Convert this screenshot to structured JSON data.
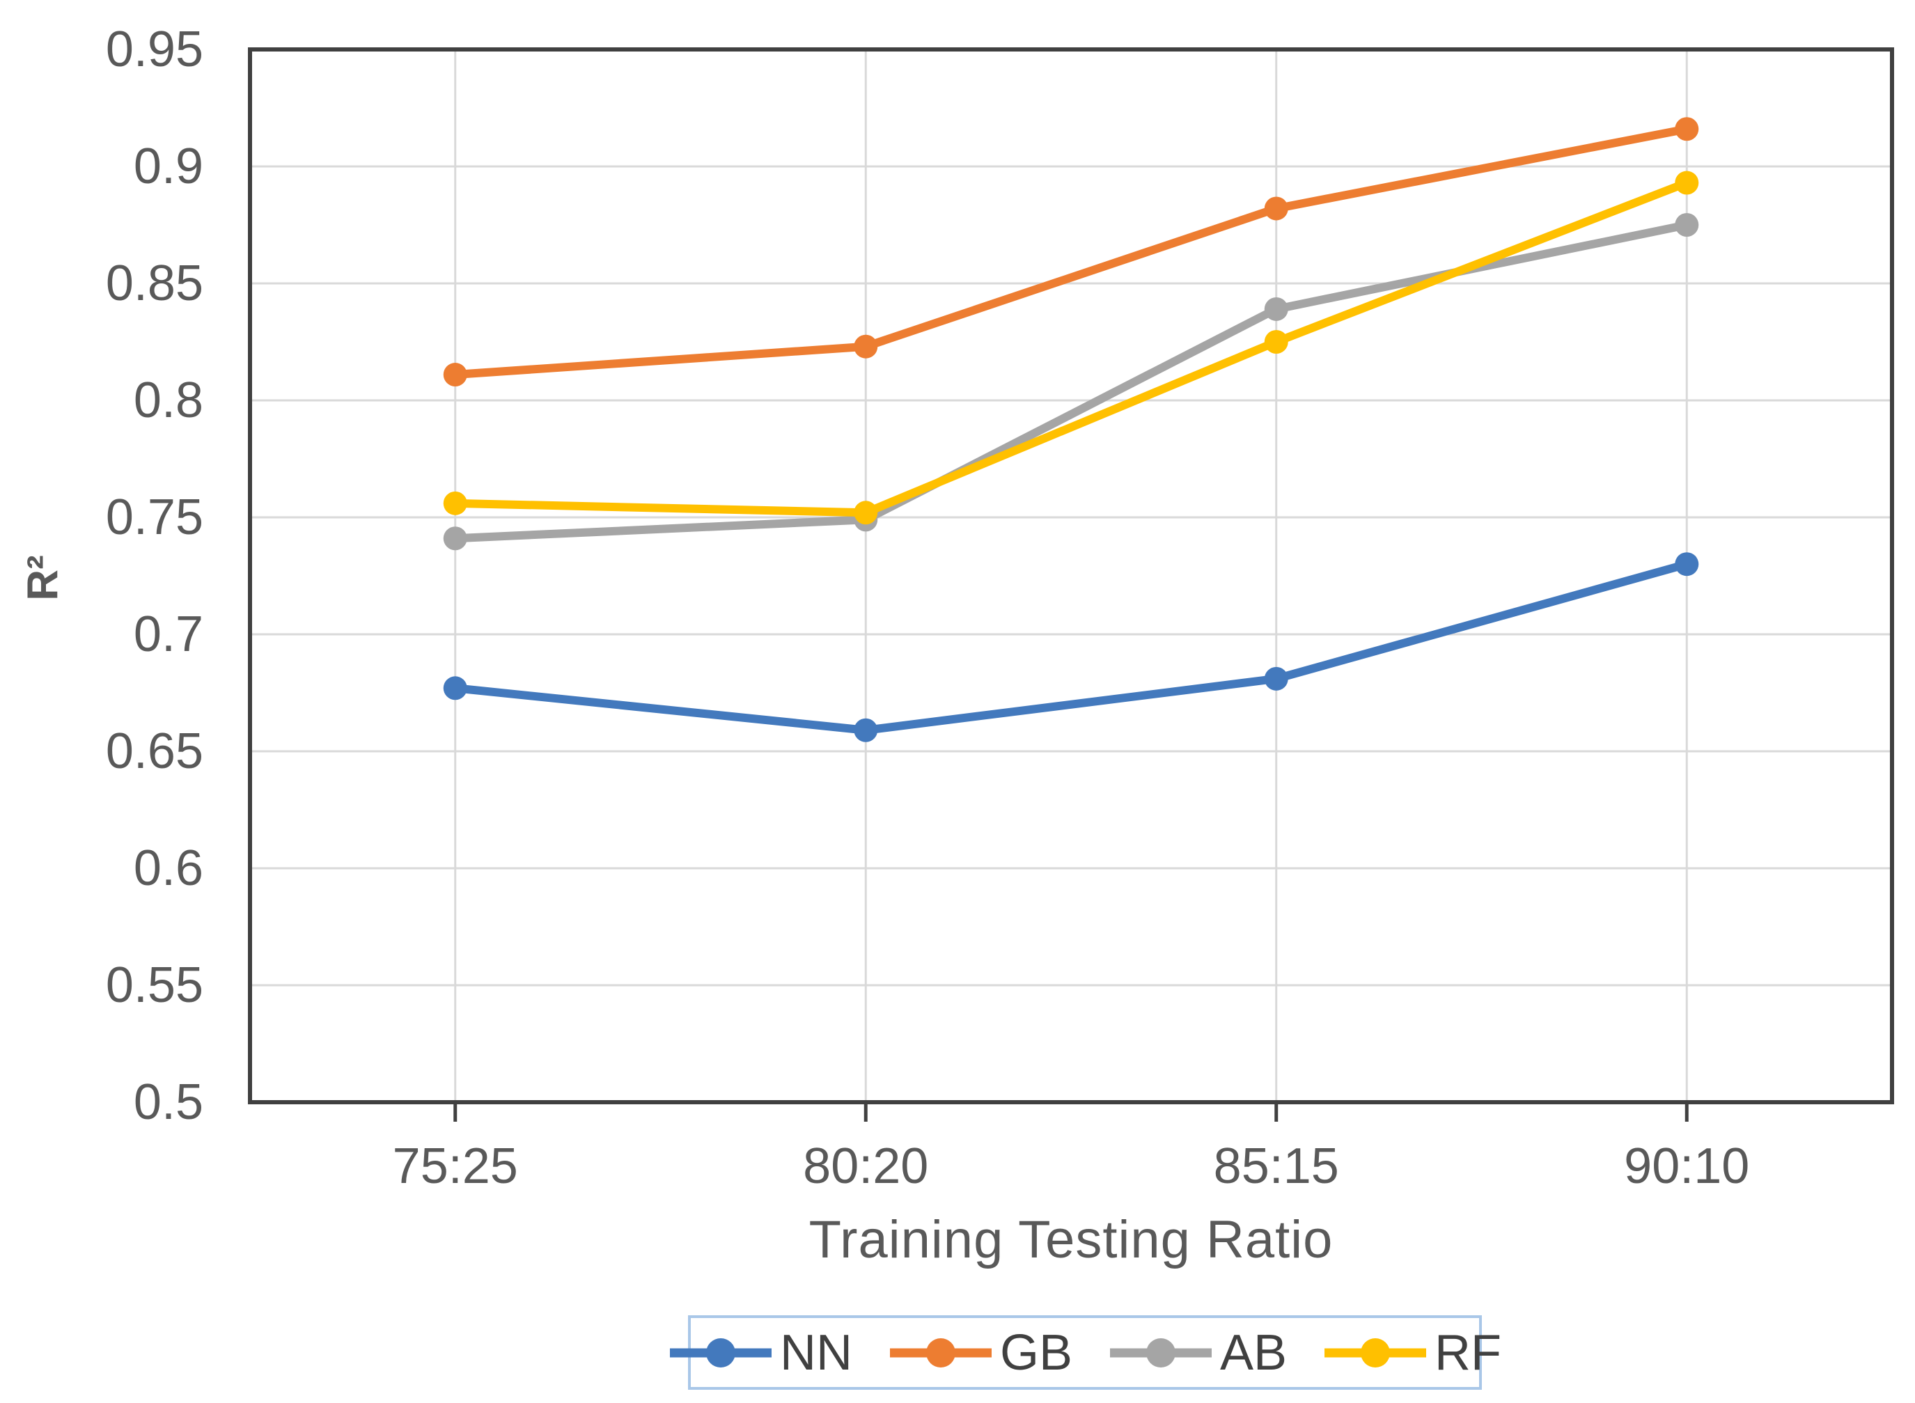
{
  "chart_data": {
    "type": "line",
    "title": "",
    "xlabel": "Training Testing Ratio",
    "ylabel": "R²",
    "categories": [
      "75:25",
      "80:20",
      "85:15",
      "90:10"
    ],
    "series": [
      {
        "name": "NN",
        "color": "#4379BD",
        "marker": "circle",
        "values": [
          0.677,
          0.659,
          0.681,
          0.73
        ]
      },
      {
        "name": "GB",
        "color": "#ED7D31",
        "marker": "circle",
        "values": [
          0.811,
          0.823,
          0.882,
          0.916
        ]
      },
      {
        "name": "AB",
        "color": "#A5A5A5",
        "marker": "circle",
        "values": [
          0.741,
          0.749,
          0.839,
          0.875
        ]
      },
      {
        "name": "RF",
        "color": "#FFC000",
        "marker": "circle",
        "values": [
          0.756,
          0.752,
          0.825,
          0.893
        ]
      }
    ],
    "ylim": [
      0.5,
      0.95
    ],
    "yticks": [
      {
        "v": 0.5,
        "label": "0.5"
      },
      {
        "v": 0.55,
        "label": "0.55"
      },
      {
        "v": 0.6,
        "label": "0.6"
      },
      {
        "v": 0.65,
        "label": "0.65"
      },
      {
        "v": 0.7,
        "label": "0.7"
      },
      {
        "v": 0.75,
        "label": "0.75"
      },
      {
        "v": 0.8,
        "label": "0.8"
      },
      {
        "v": 0.85,
        "label": "0.85"
      },
      {
        "v": 0.9,
        "label": "0.9"
      },
      {
        "v": 0.95,
        "label": "0.95"
      }
    ],
    "grid": true,
    "legend_position": "bottom"
  },
  "colors": {
    "axis_text": "#595959",
    "grid": "#D9D9D9",
    "plot_border": "#404040",
    "legend_border": "#A9C7E8",
    "legend_text": "#404040",
    "background": "#FFFFFF"
  }
}
